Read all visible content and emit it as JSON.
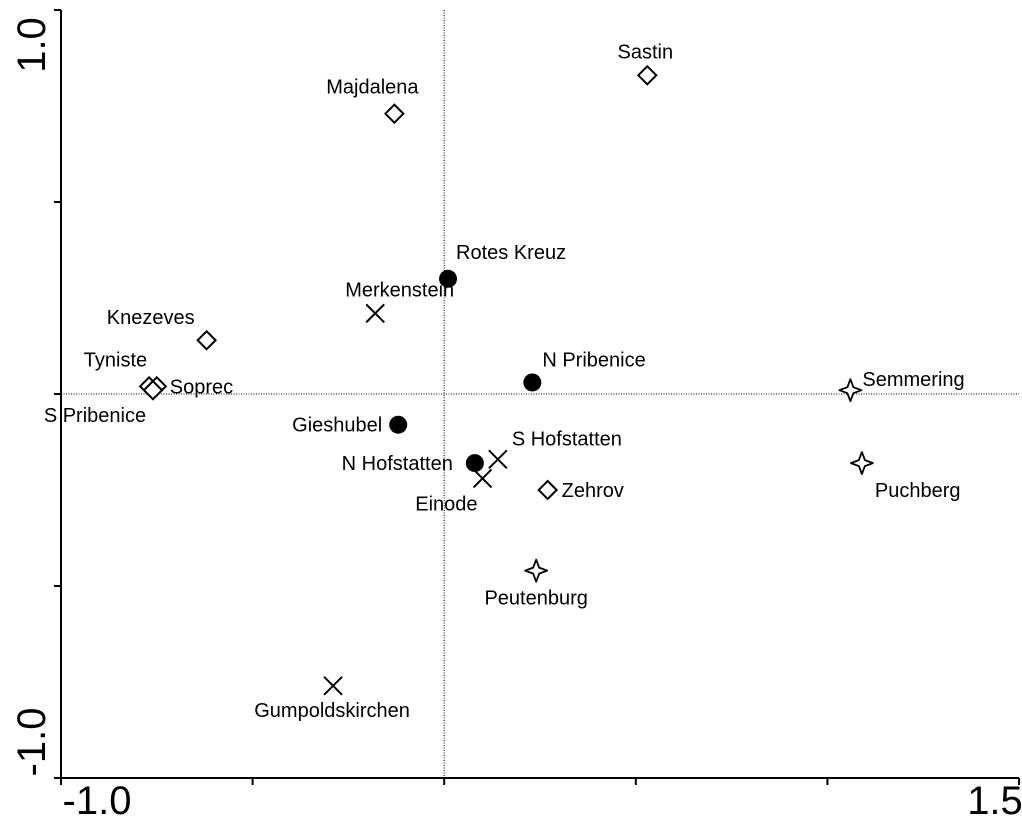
{
  "chart_data": {
    "type": "scatter",
    "title": "",
    "xlabel": "",
    "ylabel": "",
    "xlim": [
      -1.0,
      1.5
    ],
    "ylim": [
      -1.0,
      1.0
    ],
    "x_tick_labels": [
      "-1.0",
      "1.5"
    ],
    "y_tick_labels": [
      "1.0",
      "-1.0"
    ],
    "grid": false,
    "zero_lines": true,
    "series": [
      {
        "marker": "circle-filled",
        "points": [
          {
            "label": "Rotes Kreuz",
            "x": 0.01,
            "y": 0.3
          },
          {
            "label": "N Pribenice",
            "x": 0.23,
            "y": 0.03
          },
          {
            "label": "Gieshubel",
            "x": -0.12,
            "y": -0.08
          },
          {
            "label": "N Hofstatten",
            "x": 0.08,
            "y": -0.18
          }
        ]
      },
      {
        "marker": "x-cross",
        "points": [
          {
            "label": "Merkenstein",
            "x": -0.18,
            "y": 0.21
          },
          {
            "label": "S Hofstatten",
            "x": 0.14,
            "y": -0.17
          },
          {
            "label": "Einode",
            "x": 0.1,
            "y": -0.22
          },
          {
            "label": "Gumpoldskirchen",
            "x": -0.29,
            "y": -0.76
          }
        ]
      },
      {
        "marker": "diamond-open",
        "points": [
          {
            "label": "Sastin",
            "x": 0.53,
            "y": 0.83
          },
          {
            "label": "Majdalena",
            "x": -0.13,
            "y": 0.73
          },
          {
            "label": "Knezeves",
            "x": -0.62,
            "y": 0.14
          },
          {
            "label": "Tyniste",
            "x": -0.77,
            "y": 0.02
          },
          {
            "label": "Soprec",
            "x": -0.75,
            "y": 0.02
          },
          {
            "label": "S Pribenice",
            "x": -0.76,
            "y": 0.01
          },
          {
            "label": "Zehrov",
            "x": 0.27,
            "y": -0.25
          }
        ]
      },
      {
        "marker": "star-open",
        "points": [
          {
            "label": "Semmering",
            "x": 1.06,
            "y": 0.01
          },
          {
            "label": "Puchberg",
            "x": 1.09,
            "y": -0.18
          },
          {
            "label": "Peutenburg",
            "x": 0.24,
            "y": -0.46
          }
        ]
      }
    ]
  }
}
